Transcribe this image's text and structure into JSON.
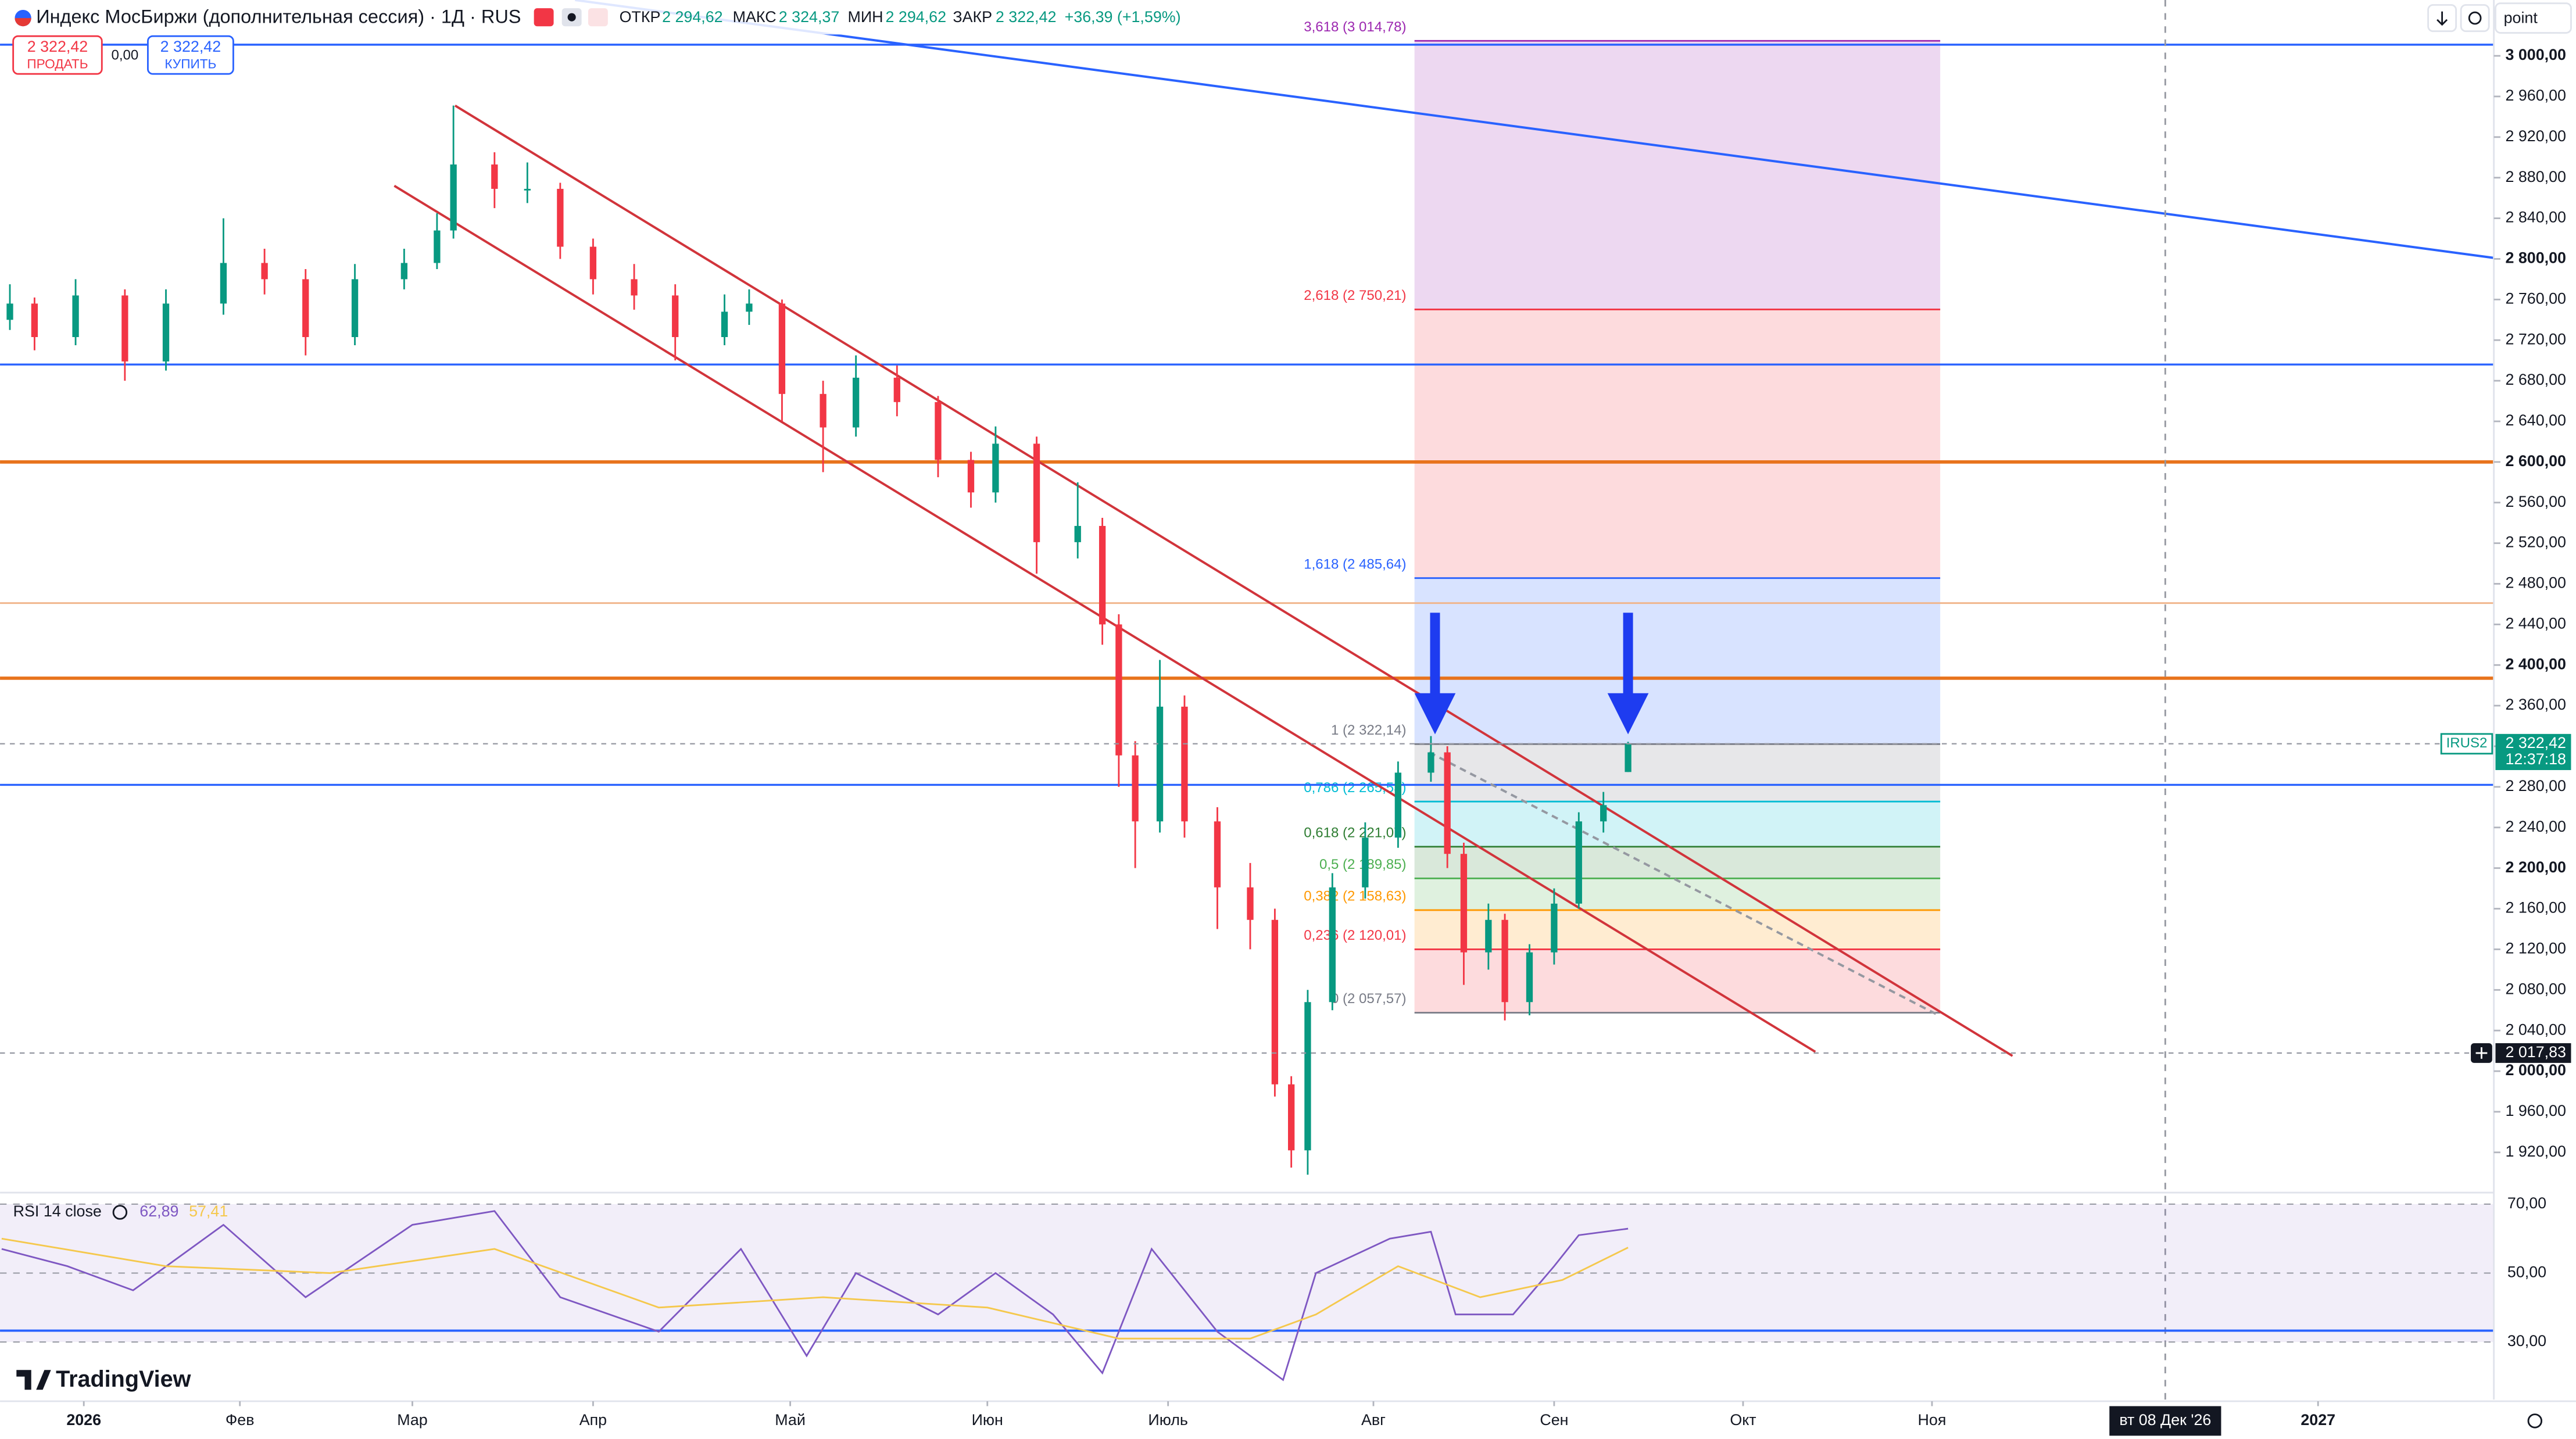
{
  "header": {
    "title": "Индекс МосБиржи (дополнительная сессия) · 1Д · RUS",
    "open_label": "ОТКР",
    "open": "2 294,62",
    "high_label": "МАКС",
    "high": "2 324,37",
    "low_label": "МИН",
    "low": "2 294,62",
    "close_label": "ЗАКР",
    "close": "2 322,42",
    "change": "+36,39 (+1,59%)",
    "sell_price": "2 322,42",
    "sell": "ПРОДАТЬ",
    "spread": "0,00",
    "buy_price": "2 322,42",
    "buy": "КУПИТЬ",
    "unit": "point",
    "logo": "TradingView"
  },
  "chart_data": [
    {
      "type": "candlestick",
      "up_color": "#089981",
      "down_color": "#f23645",
      "grid": false,
      "xlim": [
        -10.2,
        293.4
      ],
      "ylim": [
        1882,
        3055
      ],
      "xticks": [
        {
          "value": 0,
          "label": "2026"
        },
        {
          "value": 19,
          "label": "Фев"
        },
        {
          "value": 40,
          "label": "Мар"
        },
        {
          "value": 62,
          "label": "Апр"
        },
        {
          "value": 86,
          "label": "Май"
        },
        {
          "value": 110,
          "label": "Июн"
        },
        {
          "value": 132,
          "label": "Июль"
        },
        {
          "value": 157,
          "label": "Авг"
        },
        {
          "value": 179,
          "label": "Сен"
        },
        {
          "value": 202,
          "label": "Окт"
        },
        {
          "value": 225,
          "label": "Ноя"
        },
        {
          "value": 272,
          "label": "2027"
        }
      ],
      "yticks": [
        {
          "value": 1920,
          "label": "1 920,00"
        },
        {
          "value": 1960,
          "label": "1 960,00"
        },
        {
          "value": 2000,
          "label": "2 000,00"
        },
        {
          "value": 2040,
          "label": "2 040,00"
        },
        {
          "value": 2080,
          "label": "2 080,00"
        },
        {
          "value": 2120,
          "label": "2 120,00"
        },
        {
          "value": 2160,
          "label": "2 160,00"
        },
        {
          "value": 2200,
          "label": "2 200,00"
        },
        {
          "value": 2240,
          "label": "2 240,00"
        },
        {
          "value": 2280,
          "label": "2 280,00"
        },
        {
          "value": 2320,
          "label": "2 320,00"
        },
        {
          "value": 2360,
          "label": "2 360,00"
        },
        {
          "value": 2400,
          "label": "2 400,00"
        },
        {
          "value": 2440,
          "label": "2 440,00"
        },
        {
          "value": 2480,
          "label": "2 480,00"
        },
        {
          "value": 2520,
          "label": "2 520,00"
        },
        {
          "value": 2560,
          "label": "2 560,00"
        },
        {
          "value": 2600,
          "label": "2 600,00"
        },
        {
          "value": 2640,
          "label": "2 640,00"
        },
        {
          "value": 2680,
          "label": "2 680,00"
        },
        {
          "value": 2720,
          "label": "2 720,00"
        },
        {
          "value": 2760,
          "label": "2 760,00"
        },
        {
          "value": 2800,
          "label": "2 800,00"
        },
        {
          "value": 2840,
          "label": "2 840,00"
        },
        {
          "value": 2880,
          "label": "2 880,00"
        },
        {
          "value": 2920,
          "label": "2 920,00"
        },
        {
          "value": 2960,
          "label": "2 960,00"
        },
        {
          "value": 3000,
          "label": "3 000,00"
        }
      ],
      "x": [
        -9,
        -6,
        -1,
        5,
        10,
        17,
        22,
        27,
        33,
        39,
        43,
        45,
        50,
        54,
        58,
        62,
        67,
        72,
        78,
        81,
        85,
        90,
        94,
        99,
        104,
        108,
        111,
        116,
        121,
        124,
        126,
        128,
        131,
        134,
        138,
        142,
        145,
        147,
        149,
        152,
        156,
        160,
        164,
        166,
        168,
        171,
        173,
        176,
        179,
        182,
        185,
        188
      ],
      "open": [
        2740,
        2756,
        2723,
        2764,
        2699,
        2756,
        2796,
        2780,
        2723,
        2780,
        2796,
        2828,
        2893,
        2869,
        2869,
        2812,
        2780,
        2764,
        2723,
        2748,
        2756,
        2667,
        2634,
        2683,
        2659,
        2602,
        2570,
        2618,
        2521,
        2537,
        2440,
        2311,
        2246,
        2359,
        2246,
        2181,
        2149,
        1987,
        1922,
        2068,
        2181,
        2230,
        2294,
        2314,
        2214,
        2117,
        2149,
        2068,
        2117,
        2165,
        2246,
        2294.62
      ],
      "high": [
        2775,
        2762,
        2780,
        2770,
        2770,
        2840,
        2810,
        2790,
        2795,
        2810,
        2845,
        2951,
        2905,
        2895,
        2875,
        2820,
        2795,
        2775,
        2765,
        2770,
        2760,
        2680,
        2705,
        2695,
        2665,
        2610,
        2635,
        2625,
        2580,
        2545,
        2450,
        2325,
        2405,
        2370,
        2260,
        2205,
        2160,
        1995,
        2080,
        2195,
        2245,
        2305,
        2330,
        2320,
        2225,
        2165,
        2155,
        2125,
        2180,
        2255,
        2275,
        2324.37
      ],
      "low": [
        2730,
        2710,
        2715,
        2680,
        2690,
        2745,
        2765,
        2705,
        2715,
        2770,
        2790,
        2820,
        2850,
        2855,
        2800,
        2765,
        2750,
        2700,
        2715,
        2735,
        2640,
        2590,
        2625,
        2645,
        2585,
        2555,
        2560,
        2490,
        2505,
        2420,
        2280,
        2200,
        2235,
        2230,
        2140,
        2120,
        1975,
        1905,
        1898,
        2060,
        2170,
        2220,
        2285,
        2200,
        2085,
        2100,
        2050,
        2055,
        2105,
        2160,
        2235,
        2294.62
      ],
      "close": [
        2756,
        2723,
        2764,
        2699,
        2756,
        2796,
        2780,
        2723,
        2780,
        2796,
        2828,
        2893,
        2869,
        2869,
        2812,
        2780,
        2764,
        2723,
        2748,
        2756,
        2667,
        2634,
        2683,
        2659,
        2602,
        2570,
        2618,
        2521,
        2537,
        2440,
        2311,
        2246,
        2359,
        2246,
        2181,
        2149,
        1987,
        1922,
        2068,
        2181,
        2230,
        2294,
        2314,
        2214,
        2117,
        2149,
        2068,
        2117,
        2165,
        2246,
        2262,
        2322.42
      ],
      "levels": [
        {
          "value": 3011,
          "color": "#2962ff",
          "width": 1.2
        },
        {
          "value": 2696,
          "color": "#2962ff",
          "width": 1.2
        },
        {
          "value": 2600,
          "color": "#e8731c",
          "width": 2
        },
        {
          "value": 2461,
          "color": "#f0b48a",
          "width": 1
        },
        {
          "value": 2387,
          "color": "#e8731c",
          "width": 2
        },
        {
          "value": 2282,
          "color": "#2962ff",
          "width": 1.2
        }
      ],
      "lines": [
        {
          "x": [
            59.8,
            293.4
          ],
          "y": [
            3055,
            2801
          ],
          "color": "#2962ff",
          "dashed": false
        },
        {
          "x": [
            45.2,
            234.8
          ],
          "y": [
            2951,
            2015
          ],
          "color": "#d1343b",
          "dashed": false
        },
        {
          "x": [
            37.8,
            210.8
          ],
          "y": [
            2872,
            2019
          ],
          "color": "#d1343b",
          "dashed": false
        },
        {
          "x": [
            163.8,
            225.8
          ],
          "y": [
            2314,
            2055
          ],
          "color": "#9598a1",
          "dashed": true
        }
      ],
      "fib": {
        "x": [
          162,
          226
        ],
        "levels": [
          {
            "label": "0 (2 057,57)",
            "value": 2057.57,
            "color": "#787b86"
          },
          {
            "label": "0,236 (2 120,01)",
            "value": 2120.01,
            "color": "#f23645"
          },
          {
            "label": "0,382 (2 158,63)",
            "value": 2158.63,
            "color": "#ff9800"
          },
          {
            "label": "0,5 (2 189,85)",
            "value": 2189.85,
            "color": "#4caf50"
          },
          {
            "label": "0,618 (2 221,07)",
            "value": 2221.07,
            "color": "#2e7d32"
          },
          {
            "label": "0,786 (2 265,53)",
            "value": 2265.53,
            "color": "#00bcd4"
          },
          {
            "label": "1 (2 322,14)",
            "value": 2322.14,
            "color": "#787b86"
          },
          {
            "label": "1,618 (2 485,64)",
            "value": 2485.64,
            "color": "#2962ff"
          },
          {
            "label": "2,618 (2 750,21)",
            "value": 2750.21,
            "color": "#f23645"
          },
          {
            "label": "3,618 (3 014,78)",
            "value": 3014.78,
            "color": "#9c27b0"
          }
        ]
      },
      "tags": [
        {
          "value": 2322.42,
          "label": "2 322,42",
          "sub": "12:37:18",
          "symbol": "IRUS2",
          "color": "#089981"
        },
        {
          "value": 2017.83,
          "label": "2 017,83",
          "color": "#131722"
        }
      ],
      "crosshair": {
        "x": 253.4,
        "label": "вт 08 Дек '26"
      }
    },
    {
      "type": "line",
      "title": "RSI 14 close",
      "ylim": [
        13.3,
        72.4
      ],
      "yticks": [
        {
          "value": 70,
          "label": "70,00"
        },
        {
          "value": 50,
          "label": "50,00"
        },
        {
          "value": 30,
          "label": "30,00"
        }
      ],
      "band": [
        30,
        70
      ],
      "levels": [
        {
          "value": 33.3,
          "color": "#2962ff"
        }
      ],
      "series": [
        {
          "color": "#7e57c2",
          "last_label": "62,89",
          "x": [
            -10,
            -2,
            6,
            17,
            27,
            40,
            50,
            58,
            70,
            80,
            88,
            94,
            104,
            111,
            118,
            124,
            130,
            138,
            146,
            150,
            159,
            164,
            167,
            174,
            179,
            182,
            188
          ],
          "values": [
            57,
            52,
            45,
            64,
            43,
            64,
            68,
            43,
            33,
            57,
            26,
            50,
            38,
            50,
            38,
            21,
            57,
            33,
            19,
            50,
            60,
            62,
            38,
            38,
            52,
            61,
            62.89
          ]
        },
        {
          "color": "#f5c84c",
          "last_label": "57,41",
          "x": [
            -10,
            10,
            30,
            50,
            70,
            90,
            110,
            126,
            142,
            150,
            160,
            170,
            180,
            188
          ],
          "values": [
            60,
            52,
            50,
            57,
            40,
            43,
            40,
            31,
            31,
            38,
            52,
            43,
            48,
            57.41
          ]
        }
      ]
    }
  ]
}
